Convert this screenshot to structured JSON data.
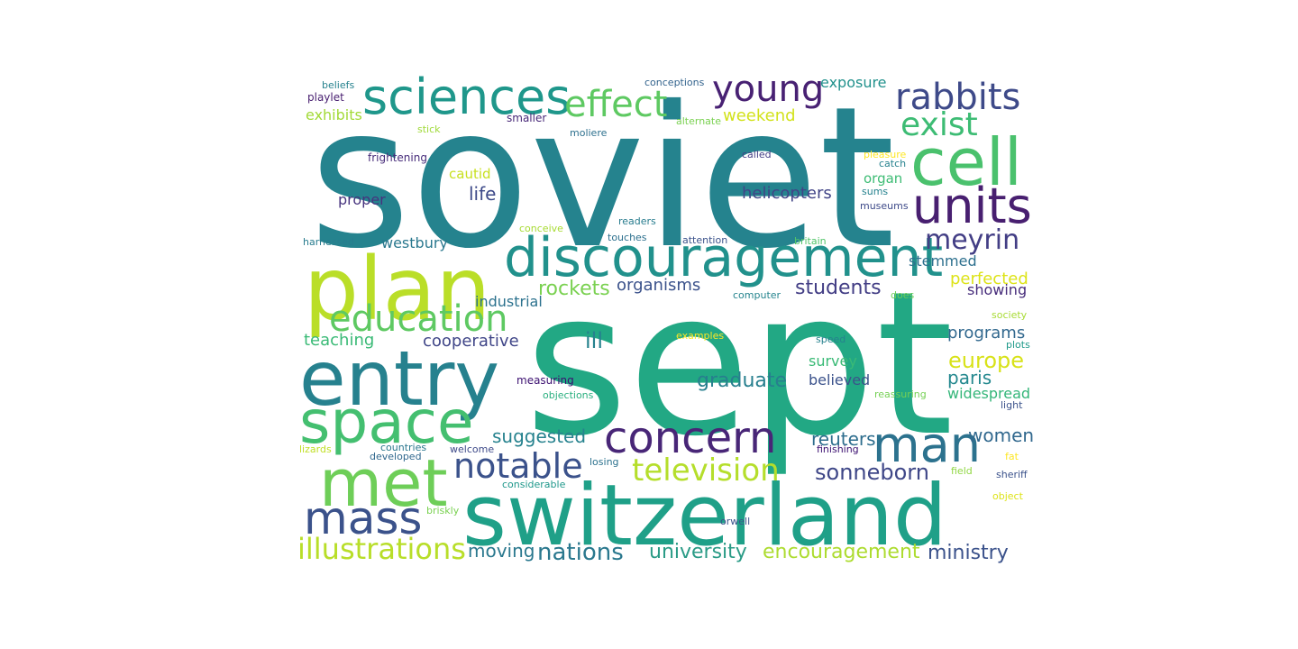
{
  "words": [
    {
      "text": "soviet",
      "color": "#25838e"
    },
    {
      "text": "sept",
      "color": "#22a884"
    },
    {
      "text": "switzerland",
      "color": "#1fa088"
    },
    {
      "text": "plan",
      "color": "#bade28"
    },
    {
      "text": "entry",
      "color": "#26818e"
    },
    {
      "text": "discouragement",
      "color": "#21918c"
    },
    {
      "text": "space",
      "color": "#44bf70"
    },
    {
      "text": "met",
      "color": "#6ece58"
    },
    {
      "text": "concern",
      "color": "#482677"
    },
    {
      "text": "sciences",
      "color": "#1f978b"
    },
    {
      "text": "cell",
      "color": "#4ac16d"
    },
    {
      "text": "units",
      "color": "#481f70"
    },
    {
      "text": "man",
      "color": "#2c728e"
    },
    {
      "text": "mass",
      "color": "#3b528b"
    },
    {
      "text": "education",
      "color": "#5ec962"
    },
    {
      "text": "rabbits",
      "color": "#3e4a89"
    },
    {
      "text": "young",
      "color": "#482173"
    },
    {
      "text": "effect",
      "color": "#5ec962"
    },
    {
      "text": "exist",
      "color": "#3dbc74"
    },
    {
      "text": "notable",
      "color": "#3b528b"
    },
    {
      "text": "television",
      "color": "#b5de2b"
    },
    {
      "text": "meyrin",
      "color": "#433e85"
    },
    {
      "text": "illustrations",
      "color": "#b8de29"
    },
    {
      "text": "sonneborn",
      "color": "#3f4788"
    },
    {
      "text": "nations",
      "color": "#2a788e"
    },
    {
      "text": "encouragement",
      "color": "#addc30"
    },
    {
      "text": "university",
      "color": "#2a9b86"
    },
    {
      "text": "europe",
      "color": "#d8e219"
    },
    {
      "text": "graduate",
      "color": "#277f8e"
    },
    {
      "text": "women",
      "color": "#31688e"
    },
    {
      "text": "ministry",
      "color": "#3b528b"
    },
    {
      "text": "moving",
      "color": "#2a788e"
    },
    {
      "text": "students",
      "color": "#433e85"
    },
    {
      "text": "rockets",
      "color": "#7ad151"
    },
    {
      "text": "suggested",
      "color": "#26828e"
    },
    {
      "text": "reuters",
      "color": "#2e6e8e"
    },
    {
      "text": "paris",
      "color": "#23888e"
    },
    {
      "text": "programs",
      "color": "#31688e"
    },
    {
      "text": "ill",
      "color": "#26828e"
    },
    {
      "text": "cooperative",
      "color": "#404688"
    },
    {
      "text": "organisms",
      "color": "#3b528b"
    },
    {
      "text": "helicopters",
      "color": "#414487"
    },
    {
      "text": "life",
      "color": "#3e4a89"
    },
    {
      "text": "teaching",
      "color": "#3aba76"
    },
    {
      "text": "perfected",
      "color": "#dde318"
    },
    {
      "text": "stemmed",
      "color": "#2d708e"
    },
    {
      "text": "widespread",
      "color": "#34b679"
    },
    {
      "text": "survey",
      "color": "#3aba76"
    },
    {
      "text": "believed",
      "color": "#3b528b"
    },
    {
      "text": "weekend",
      "color": "#d2e21b"
    },
    {
      "text": "exposure",
      "color": "#21918c"
    },
    {
      "text": "industrial",
      "color": "#2c728e"
    },
    {
      "text": "westbury",
      "color": "#2a788e"
    },
    {
      "text": "showing",
      "color": "#472d7b"
    },
    {
      "text": "exhibits",
      "color": "#a2da37"
    },
    {
      "text": "proper",
      "color": "#46337e"
    },
    {
      "text": "cautid",
      "color": "#c8e020"
    },
    {
      "text": "organ",
      "color": "#3dbc74"
    },
    {
      "text": "conceptions",
      "color": "#33638d"
    },
    {
      "text": "beliefs",
      "color": "#26828e"
    },
    {
      "text": "playlet",
      "color": "#481f70"
    },
    {
      "text": "smaller",
      "color": "#482878"
    },
    {
      "text": "alternate",
      "color": "#7ad151"
    },
    {
      "text": "moliere",
      "color": "#2d708e"
    },
    {
      "text": "stick",
      "color": "#a0da39"
    },
    {
      "text": "frightening",
      "color": "#472c7a"
    },
    {
      "text": "called",
      "color": "#433e85"
    },
    {
      "text": "pleasure",
      "color": "#fde725"
    },
    {
      "text": "catch",
      "color": "#26828e"
    },
    {
      "text": "sums",
      "color": "#26828e"
    },
    {
      "text": "museums",
      "color": "#3e4a89"
    },
    {
      "text": "readers",
      "color": "#287c8e"
    },
    {
      "text": "conceive",
      "color": "#a8db34"
    },
    {
      "text": "touches",
      "color": "#2d708e"
    },
    {
      "text": "harnessed",
      "color": "#287c8e"
    },
    {
      "text": "attention",
      "color": "#3b528b"
    },
    {
      "text": "britain",
      "color": "#52c569"
    },
    {
      "text": "computer",
      "color": "#25848e"
    },
    {
      "text": "does",
      "color": "#6ece58"
    },
    {
      "text": "society",
      "color": "#a8db34"
    },
    {
      "text": "examples",
      "color": "#fde725"
    },
    {
      "text": "speed",
      "color": "#26828e"
    },
    {
      "text": "plots",
      "color": "#1f9a8a"
    },
    {
      "text": "measuring",
      "color": "#3b0f70"
    },
    {
      "text": "objections",
      "color": "#29af7f"
    },
    {
      "text": "light",
      "color": "#3b528b"
    },
    {
      "text": "reassuring",
      "color": "#75d054"
    },
    {
      "text": "lizards",
      "color": "#c0df25"
    },
    {
      "text": "countries",
      "color": "#2a768e"
    },
    {
      "text": "welcome",
      "color": "#3e4a89"
    },
    {
      "text": "developed",
      "color": "#31688e"
    },
    {
      "text": "finishing",
      "color": "#3b0f70"
    },
    {
      "text": "fat",
      "color": "#fde725"
    },
    {
      "text": "losing",
      "color": "#2c728e"
    },
    {
      "text": "field",
      "color": "#90d743"
    },
    {
      "text": "sheriff",
      "color": "#3b528b"
    },
    {
      "text": "considerable",
      "color": "#1f988b"
    },
    {
      "text": "object",
      "color": "#dde318"
    },
    {
      "text": "briskly",
      "color": "#7ad151"
    },
    {
      "text": "orwell",
      "color": "#3b528b"
    }
  ]
}
